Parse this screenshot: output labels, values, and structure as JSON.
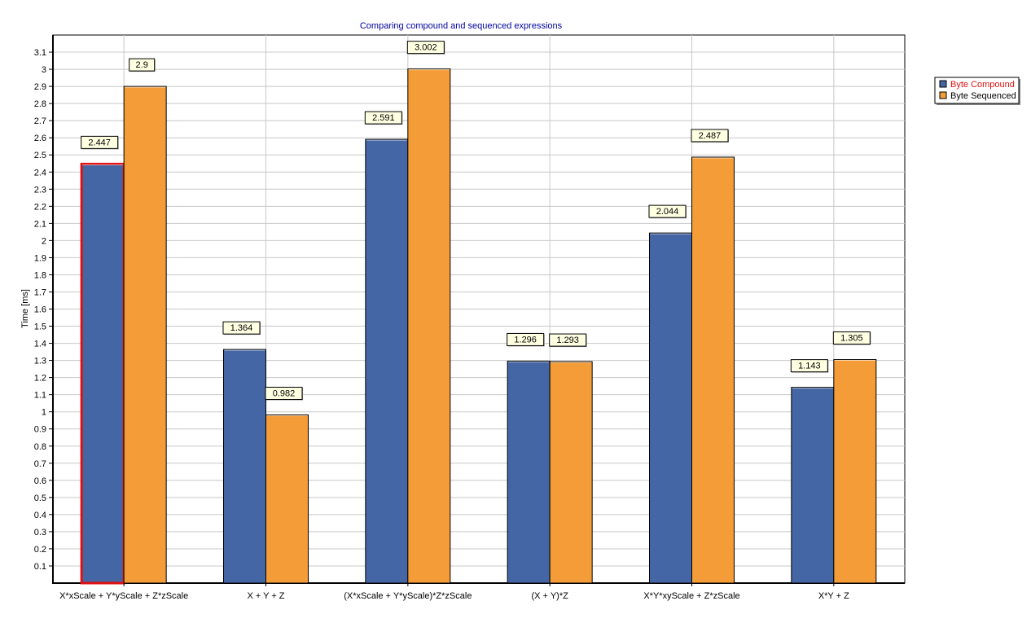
{
  "chart_data": {
    "type": "bar",
    "title": "Comparing compound and sequenced expressions",
    "xlabel": "",
    "ylabel": "Time [ms]",
    "ylim": [
      0,
      3.2
    ],
    "ytick_step": 0.1,
    "grid": true,
    "legend_position": "right",
    "categories": [
      "X*xScale + Y*yScale + Z*zScale",
      "X + Y + Z",
      "(X*xScale + Y*yScale)*Z*zScale",
      "(X + Y)*Z",
      "X*Y*xyScale + Z*zScale",
      "X*Y + Z"
    ],
    "series": [
      {
        "name": "Byte Compound",
        "color": "#4466a4",
        "values": [
          2.447,
          1.364,
          2.591,
          1.296,
          2.044,
          1.143
        ]
      },
      {
        "name": "Byte Sequenced",
        "color": "#f39c38",
        "values": [
          2.9,
          0.982,
          3.002,
          1.293,
          2.487,
          1.305
        ]
      }
    ],
    "highlight": {
      "series": 0,
      "index": 0,
      "color": "#e01010"
    },
    "legend_colors": {
      "Byte Compound": "#e01010",
      "Byte Sequenced": "#000000"
    }
  }
}
